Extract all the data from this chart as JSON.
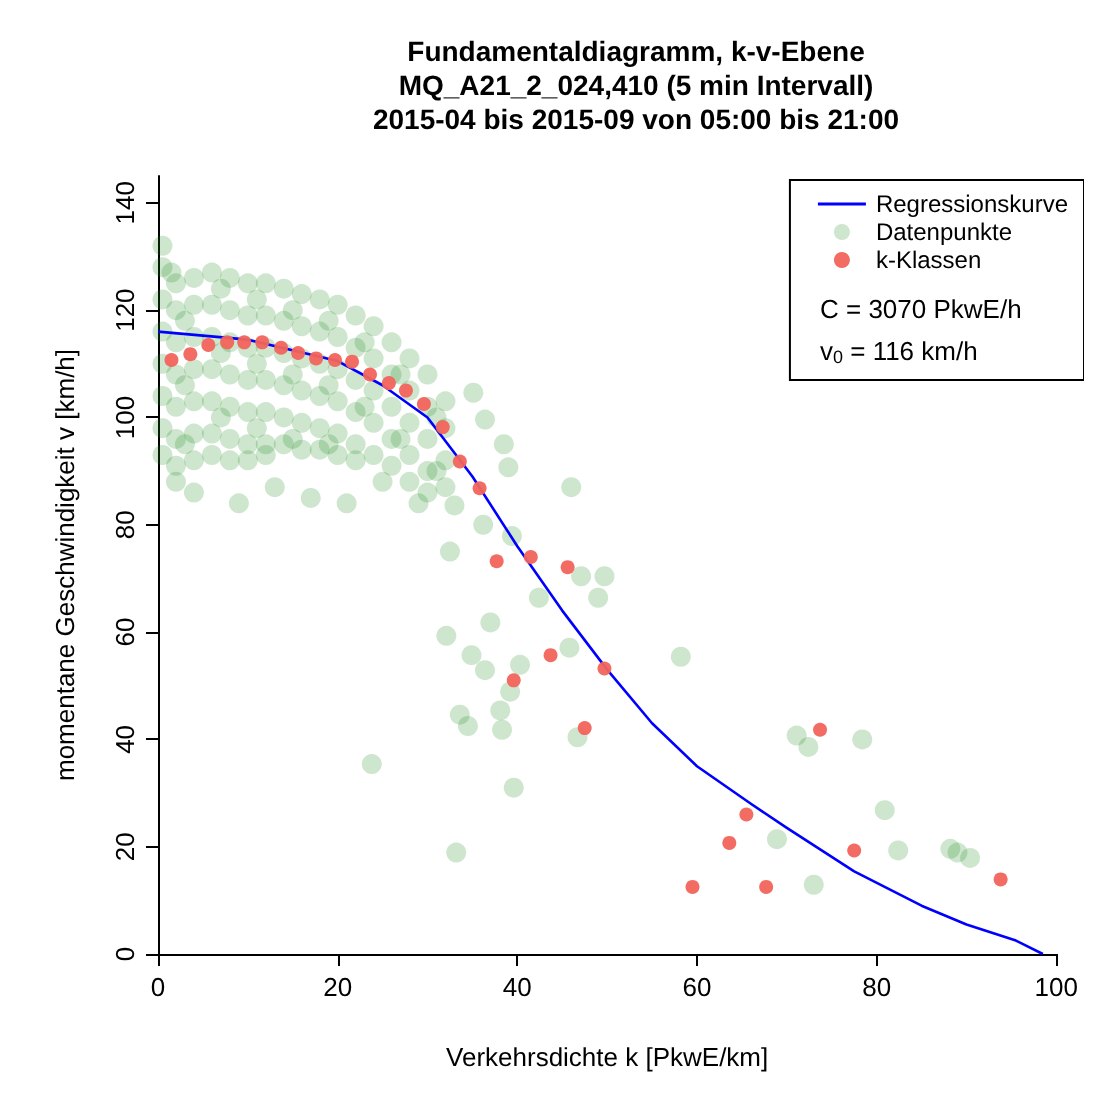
{
  "chart_data": {
    "type": "scatter",
    "title": "Fundamentaldiagramm, k-v-Ebene\nMQ_A21_2_024,410 (5 min Intervall)\n2015-04 bis 2015-09 von 05:00 bis 21:00",
    "xlabel": "Verkehrsdichte k [PkwE/km]",
    "ylabel": "momentane Geschwindigkeit v [km/h]",
    "annotations": [
      "C = 3070 PkwE/h",
      "v$_{0}$ = 116 km/h"
    ],
    "xlim": [
      0,
      100
    ],
    "xticks": [
      0,
      20,
      40,
      60,
      80,
      100
    ],
    "ylim": [
      0,
      145
    ],
    "yticks": [
      0,
      20,
      40,
      60,
      80,
      100,
      120,
      140
    ],
    "grid": false,
    "legend": "top right",
    "marker": "circle",
    "series": [
      {
        "name": "Regressionskurve",
        "type": "line",
        "marker": "none",
        "color": "#0000ff",
        "x": [
          0,
          10,
          20,
          25,
          30,
          35,
          40,
          45,
          50,
          55,
          60,
          66,
          70,
          77.5,
          85,
          90,
          95.5,
          98.5
        ],
        "values": [
          116,
          114.5,
          110.5,
          106,
          100,
          89,
          76,
          64,
          53,
          43,
          35,
          28,
          23.5,
          15.4,
          9,
          5.5,
          2.5,
          0
        ]
      },
      {
        "name": "Datenpunkte",
        "color": "#228b22",
        "x": [
          0.5,
          0.5,
          0.5,
          0.5,
          0.5,
          0.5,
          0.5,
          2,
          2,
          2,
          2,
          2,
          2,
          2,
          4,
          4,
          4,
          4,
          4,
          4,
          4,
          6,
          6,
          6,
          6,
          6,
          6,
          6,
          8,
          8,
          8,
          8,
          8,
          8,
          8,
          10,
          10,
          10,
          10,
          10,
          10,
          10,
          12,
          12,
          12,
          12,
          12,
          12,
          12,
          14,
          14,
          14,
          14,
          14,
          14,
          16,
          16,
          16,
          16,
          16,
          16,
          18,
          18,
          18,
          18,
          18,
          18,
          20,
          20,
          20,
          20,
          20,
          20,
          22,
          22,
          22,
          22,
          22,
          22,
          24,
          24,
          24,
          24,
          24,
          26,
          26,
          26,
          26,
          26,
          28,
          28,
          28,
          28,
          28,
          30,
          30,
          30,
          30,
          30,
          32,
          32,
          32,
          32,
          3,
          3,
          3,
          7,
          7,
          7,
          11,
          11,
          11,
          15,
          15,
          15,
          19,
          19,
          19,
          23,
          23,
          27,
          27,
          31,
          31,
          0.5,
          1.5,
          2,
          4,
          9,
          13,
          17,
          21,
          23.8,
          25,
          29,
          33.2,
          39.6,
          35.1,
          36.4,
          38.5,
          39,
          46,
          33,
          36.2,
          39.4,
          32.5,
          47.1,
          49.7,
          49,
          42.4,
          37,
          32.1,
          34.9,
          36.4,
          40.3,
          45.8,
          58.2,
          39.2,
          38.1,
          33.6,
          34.5,
          38.3,
          46.7,
          71.1,
          72.4,
          78.4,
          80.9,
          68.9,
          82.4,
          88.2,
          89,
          90.4,
          73
        ],
        "values": [
          128,
          122,
          116,
          110,
          104,
          98,
          93,
          125,
          120,
          114,
          108,
          102,
          96,
          91,
          126,
          121,
          115,
          109,
          103,
          97,
          92,
          127,
          121,
          115,
          109,
          103,
          97,
          93,
          126,
          120,
          114,
          108,
          102,
          96,
          92,
          125,
          119,
          113,
          107,
          101,
          95,
          92,
          125,
          119,
          113,
          107,
          101,
          95,
          93,
          124,
          118,
          112,
          106,
          100,
          95,
          123,
          117,
          111,
          105,
          99,
          94,
          122,
          116,
          110,
          104,
          98,
          94,
          121,
          115,
          109,
          103,
          97,
          93,
          119,
          113,
          107,
          101,
          95,
          92,
          117,
          111,
          105,
          99,
          93,
          114,
          108,
          102,
          96,
          91,
          111,
          105,
          99,
          93,
          88,
          108,
          102,
          96,
          90,
          86,
          103,
          98,
          92,
          87,
          118,
          106,
          95,
          124,
          112,
          100,
          122,
          110,
          98,
          120,
          108,
          96,
          118,
          106,
          95,
          114,
          102,
          108,
          96,
          100,
          90,
          132,
          127,
          88,
          86,
          84,
          87,
          85,
          84,
          35.4,
          88,
          84,
          18.9,
          31,
          104.6,
          99.6,
          95,
          90.7,
          87,
          83.6,
          80,
          77.9,
          75,
          70.4,
          70.4,
          66.4,
          66.4,
          61.8,
          59.3,
          55.7,
          52.9,
          53.9,
          57.1,
          55.4,
          48.9,
          45.4,
          44.6,
          42.5,
          41.8,
          40.4,
          40.7,
          38.6,
          40,
          26.8,
          21.4,
          19.3,
          19.6,
          18.9,
          17.9,
          12.9
        ]
      },
      {
        "name": "k-Klassen",
        "type": "scatter",
        "color": "#f2645c",
        "x": [
          1.5,
          3.6,
          5.6,
          7.7,
          9.6,
          11.6,
          13.7,
          15.6,
          17.6,
          19.7,
          21.6,
          23.6,
          25.7,
          27.6,
          29.6,
          31.7,
          33.6,
          35.8,
          37.7,
          39.6,
          41.5,
          43.7,
          45.6,
          47.5,
          49.7,
          59.5,
          63.6,
          65.5,
          67.7,
          73.7,
          77.5,
          93.8
        ],
        "values": [
          110.7,
          111.8,
          113.5,
          114,
          114,
          114,
          113,
          112,
          111,
          110.7,
          110.4,
          108,
          106.4,
          105,
          102.5,
          98.2,
          91.8,
          86.8,
          73.2,
          51,
          74,
          55.7,
          72.1,
          42.1,
          53.2,
          12.5,
          20.7,
          26,
          12.5,
          41.8,
          19.3,
          13.9
        ]
      }
    ]
  }
}
